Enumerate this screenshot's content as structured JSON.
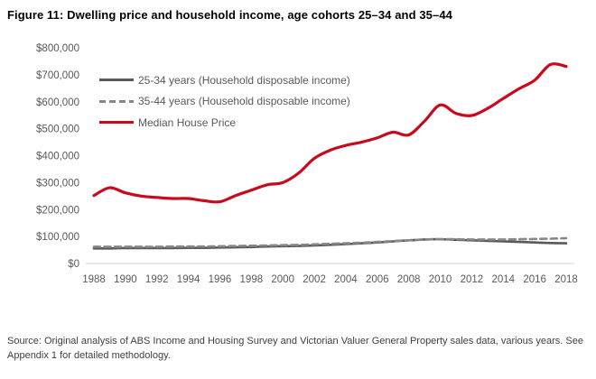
{
  "title": "Figure 11: Dwelling price and household income, age cohorts 25–34 and 35–44",
  "source": "Source: Original analysis of ABS Income and Housing Survey and Victorian Valuer General Property sales data, various years. See Appendix 1 for detailed methodology.",
  "colors": {
    "house_price_red": "#c9091c",
    "income_25_34_gray": "#58595b",
    "income_35_44_gray": "#85878a",
    "axis_text": "#595959",
    "axis_line": "#d9d9d9"
  },
  "legend": [
    {
      "label": "25-34 years (Household disposable income)",
      "color": "#58595b",
      "dash": false
    },
    {
      "label": "35-44 years (Household disposable income)",
      "color": "#85878a",
      "dash": true
    },
    {
      "label": "Median House Price",
      "color": "#c9091c",
      "dash": false
    }
  ],
  "chart_data": {
    "type": "line",
    "title": "Figure 11: Dwelling price and household income, age cohorts 25–34 and 35–44",
    "xlabel": "",
    "ylabel": "",
    "grid": false,
    "legend_position": "upper-left-inside",
    "ylim": [
      0,
      800000
    ],
    "x": [
      1988,
      1989,
      1990,
      1991,
      1992,
      1993,
      1994,
      1995,
      1996,
      1997,
      1998,
      1999,
      2000,
      2001,
      2002,
      2003,
      2004,
      2005,
      2006,
      2007,
      2008,
      2009,
      2010,
      2011,
      2012,
      2013,
      2014,
      2015,
      2016,
      2017,
      2018
    ],
    "x_tick_labels": [
      "1988",
      "1990",
      "1992",
      "1994",
      "1996",
      "1998",
      "2000",
      "2002",
      "2004",
      "2006",
      "2008",
      "2010",
      "2012",
      "2014",
      "2016",
      "2018"
    ],
    "y_ticks": [
      {
        "label": "$0",
        "value": 0
      },
      {
        "label": "$100,000",
        "value": 100000
      },
      {
        "label": "$200,000",
        "value": 200000
      },
      {
        "label": "$300,000",
        "value": 300000
      },
      {
        "label": "$400,000",
        "value": 400000
      },
      {
        "label": "$500,000",
        "value": 500000
      },
      {
        "label": "$600,000",
        "value": 600000
      },
      {
        "label": "$700,000",
        "value": 700000
      },
      {
        "label": "$800,000",
        "value": 800000
      }
    ],
    "series": [
      {
        "name": "25-34 years (Household disposable income)",
        "style": "solid",
        "color": "#58595b",
        "values": [
          56000,
          56000,
          57000,
          57000,
          57000,
          57000,
          58000,
          58000,
          59000,
          60000,
          61000,
          63000,
          64000,
          65000,
          67000,
          69000,
          72000,
          75000,
          78000,
          82000,
          86000,
          89000,
          90000,
          88000,
          86000,
          84000,
          82000,
          80000,
          78000,
          76000,
          75000
        ]
      },
      {
        "name": "35-44 years (Household disposable income)",
        "style": "dashed",
        "color": "#85878a",
        "values": [
          62000,
          62000,
          62000,
          62000,
          62000,
          63000,
          63000,
          63000,
          64000,
          65000,
          66000,
          67000,
          68000,
          69000,
          71000,
          73000,
          75000,
          77000,
          80000,
          83000,
          86000,
          89000,
          90000,
          90000,
          89000,
          89000,
          89000,
          90000,
          91000,
          92000,
          94000
        ]
      },
      {
        "name": "Median House Price",
        "style": "solid",
        "color": "#c9091c",
        "values": [
          252000,
          281000,
          262000,
          250000,
          245000,
          241000,
          241000,
          233000,
          229000,
          252000,
          272000,
          292000,
          300000,
          335000,
          390000,
          420000,
          438000,
          450000,
          466000,
          487000,
          477000,
          528000,
          588000,
          557000,
          549000,
          575000,
          612000,
          648000,
          680000,
          738000,
          731000
        ]
      }
    ]
  }
}
